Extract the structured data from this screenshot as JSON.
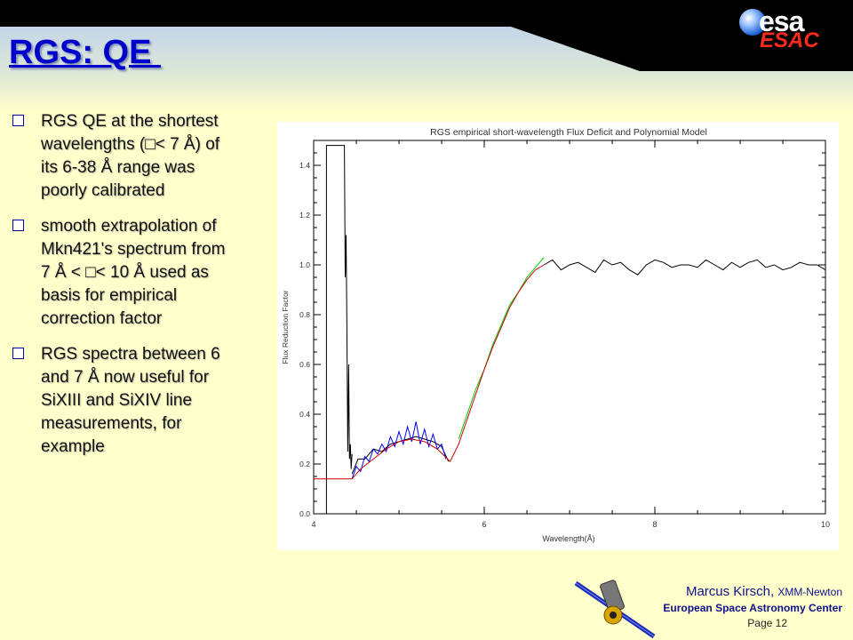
{
  "header": {
    "title": "RGS: QE ",
    "logo_text": "esa",
    "logo_subtext": "ESAC"
  },
  "bullets": [
    {
      "lines": [
        "RGS QE at the shortest",
        "wavelengths (□< 7 Å) of",
        "its 6-38 Å range was",
        "poorly calibrated"
      ]
    },
    {
      "lines": [
        "smooth extrapolation of",
        "Mkn421's spectrum from",
        "7 Å < □< 10 Å used as",
        "basis for empirical",
        "correction factor"
      ]
    },
    {
      "lines": [
        "RGS spectra between 6",
        "and 7 Å now useful for",
        "SiXIII and SiXIV line",
        "measurements, for",
        "example"
      ]
    }
  ],
  "footer": {
    "author": "Marcus Kirsch,",
    "org": "XMM-Newton",
    "institution": "European Space Astronomy Center",
    "page": "Page 12"
  },
  "chart_data": {
    "type": "line",
    "title": "RGS empirical short-wavelength Flux Deficit and Polynomial Model",
    "xlabel": "Wavelength(Å)",
    "ylabel": "Flux Reduction Factor",
    "xlim": [
      4,
      10
    ],
    "ylim": [
      0,
      1.5
    ],
    "xticks": [
      4,
      6,
      8,
      10
    ],
    "yticks": [
      0.0,
      0.2,
      0.4,
      0.6,
      0.8,
      1.0,
      1.2,
      1.4
    ],
    "xtick_labels": [
      "4",
      "6",
      "8",
      "10"
    ],
    "ytick_labels": [
      "0.0",
      "0.2",
      "0.4",
      "0.6",
      "0.8",
      "1.0",
      "1.2",
      "1.4"
    ],
    "grid": false,
    "series": [
      {
        "role": "measured-spike",
        "color": "#000000",
        "x": [
          4.15,
          4.15,
          4.36,
          4.37,
          4.38,
          4.39,
          4.4,
          4.41,
          4.42,
          4.43,
          4.44,
          4.45
        ],
        "y": [
          0.0,
          1.48,
          1.48,
          0.95,
          1.12,
          0.75,
          0.25,
          0.6,
          0.22,
          0.28,
          0.18,
          0.24
        ]
      },
      {
        "role": "measured-low",
        "color": "#000000",
        "x": [
          4.45,
          4.52,
          4.6,
          4.7,
          4.8,
          4.9,
          5.0,
          5.1,
          5.2,
          5.3,
          5.4,
          5.5,
          5.58
        ],
        "y": [
          0.16,
          0.22,
          0.22,
          0.26,
          0.25,
          0.28,
          0.29,
          0.3,
          0.31,
          0.3,
          0.29,
          0.27,
          0.21
        ]
      },
      {
        "role": "measured-high",
        "color": "#000000",
        "x": [
          6.7,
          6.8,
          6.9,
          7.0,
          7.1,
          7.2,
          7.3,
          7.4,
          7.5,
          7.6,
          7.7,
          7.8,
          7.9,
          8.0,
          8.1,
          8.2,
          8.3,
          8.4,
          8.5,
          8.6,
          8.7,
          8.8,
          8.9,
          9.0,
          9.1,
          9.2,
          9.3,
          9.4,
          9.5,
          9.6,
          9.7,
          9.8,
          9.9,
          10.0
        ],
        "y": [
          1.0,
          1.02,
          0.98,
          1.0,
          1.01,
          0.99,
          0.97,
          1.02,
          1.0,
          1.01,
          0.98,
          0.96,
          1.0,
          1.02,
          1.01,
          0.99,
          1.0,
          1.0,
          0.99,
          1.02,
          1.0,
          0.98,
          1.01,
          0.99,
          1.01,
          1.02,
          0.99,
          1.0,
          0.98,
          0.99,
          1.01,
          1.0,
          1.0,
          0.98
        ]
      },
      {
        "role": "deficit-blue",
        "color": "#0000ff",
        "x": [
          4.45,
          4.5,
          4.55,
          4.6,
          4.65,
          4.7,
          4.75,
          4.8,
          4.85,
          4.9,
          4.95,
          5.0,
          5.05,
          5.1,
          5.15,
          5.2,
          5.25,
          5.3,
          5.35,
          5.4,
          5.45,
          5.5,
          5.55
        ],
        "y": [
          0.14,
          0.19,
          0.17,
          0.23,
          0.21,
          0.26,
          0.24,
          0.28,
          0.25,
          0.31,
          0.27,
          0.33,
          0.28,
          0.35,
          0.29,
          0.37,
          0.28,
          0.34,
          0.27,
          0.32,
          0.26,
          0.28,
          0.22
        ]
      },
      {
        "role": "deficit-green",
        "color": "#00cc00",
        "x": [
          5.7,
          5.8,
          5.9,
          6.0,
          6.1,
          6.2,
          6.3,
          6.4,
          6.5,
          6.6,
          6.7
        ],
        "y": [
          0.3,
          0.4,
          0.5,
          0.58,
          0.68,
          0.76,
          0.84,
          0.89,
          0.95,
          0.99,
          1.03
        ]
      },
      {
        "role": "polynomial-model",
        "color": "#cc0000",
        "x": [
          4.0,
          4.45,
          4.55,
          4.7,
          4.85,
          5.0,
          5.15,
          5.3,
          5.45,
          5.6,
          5.7,
          5.8,
          5.9,
          6.0,
          6.1,
          6.2,
          6.3,
          6.4,
          6.5,
          6.6,
          6.7
        ],
        "y": [
          0.14,
          0.14,
          0.18,
          0.22,
          0.26,
          0.29,
          0.3,
          0.29,
          0.26,
          0.21,
          0.28,
          0.38,
          0.48,
          0.58,
          0.67,
          0.75,
          0.83,
          0.89,
          0.94,
          0.98,
          1.0
        ]
      }
    ]
  }
}
